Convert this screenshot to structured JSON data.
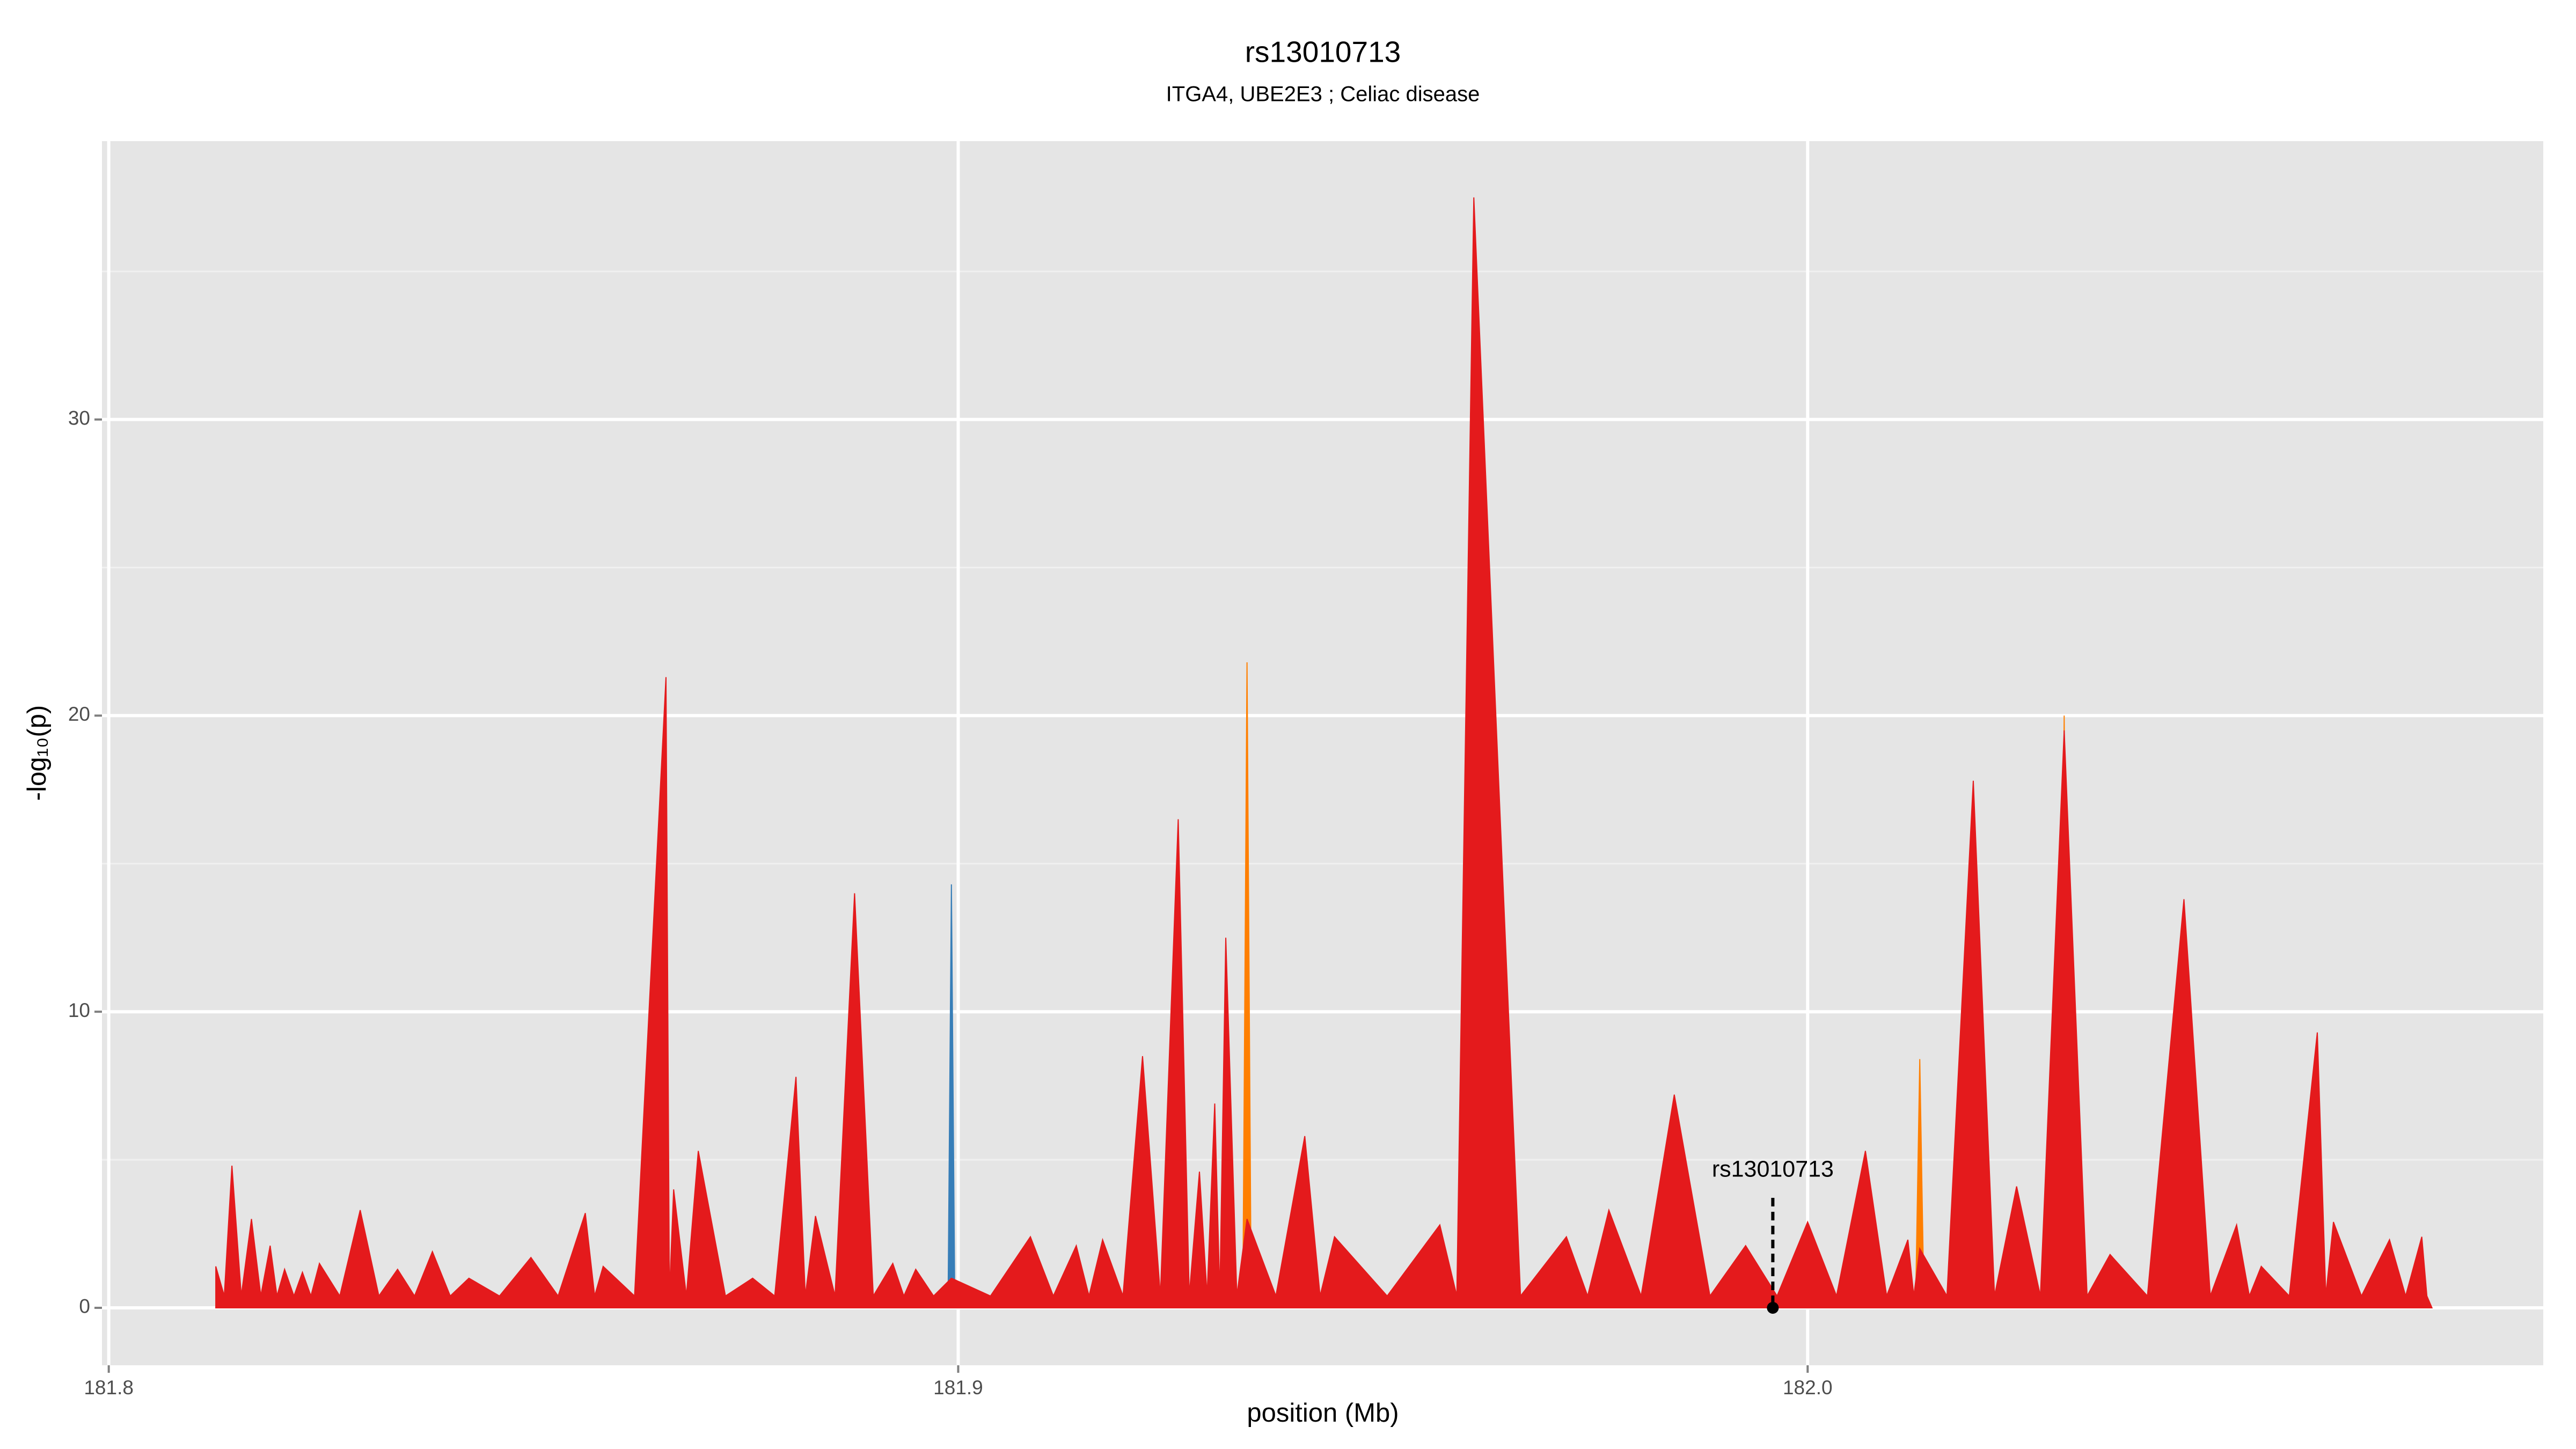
{
  "chart_data": {
    "type": "area",
    "title": "rs13010713",
    "subtitle": "ITGA4, UBE2E3 ; Celiac disease",
    "x_label": "position (Mb)",
    "y_label": "-log₁₀(p)",
    "xlim": [
      181.7992,
      182.0866
    ],
    "ylim": [
      -1.94,
      39.4
    ],
    "xticks": [
      181.8,
      181.9,
      {
        "value": 182,
        "label": "182.0"
      }
    ],
    "yticks": [
      0,
      10,
      20,
      30
    ],
    "grid": true,
    "annotations": [
      {
        "text": "rs13010713",
        "x": 181.9959
      }
    ],
    "series": [
      {
        "color": "#377eb8",
        "x": [
          181.8126,
          181.8805,
          181.8809,
          181.8813,
          181.8988,
          181.8992,
          181.8996,
          182.0064,
          182.0068,
          182.0072,
          182.0404,
          182.0408,
          182.0412,
          182.0735
        ],
        "values": [
          0,
          0,
          7.8,
          0,
          0,
          14.3,
          0,
          0,
          5.3,
          0,
          0,
          2.2,
          0,
          0
        ]
      },
      {
        "color": "#ff7f00",
        "x": [
          181.8126,
          181.9335,
          181.934,
          181.9345,
          182.0127,
          182.0132,
          182.0137,
          182.0297,
          182.0302,
          182.0307,
          182.0735
        ],
        "values": [
          0,
          0,
          21.8,
          0,
          0,
          8.4,
          0,
          0,
          20.0,
          0,
          0
        ]
      },
      {
        "color": "#e41a1c",
        "x": [
          181.8126,
          181.8136,
          181.8145,
          181.8156,
          181.8168,
          181.8179,
          181.819,
          181.8198,
          181.8207,
          181.8218,
          181.8228,
          181.8238,
          181.8248,
          181.8272,
          181.8296,
          181.8318,
          181.834,
          181.836,
          181.8381,
          181.8402,
          181.8424,
          181.846,
          181.8497,
          181.8529,
          181.8561,
          181.8572,
          181.8582,
          181.8619,
          181.8656,
          181.866,
          181.8665,
          181.868,
          181.8694,
          181.8726,
          181.8758,
          181.8784,
          181.8809,
          181.882,
          181.8832,
          181.8855,
          181.8878,
          181.89,
          181.8923,
          181.8936,
          181.895,
          181.8971,
          181.8992,
          181.9038,
          181.9085,
          181.9112,
          181.9139,
          181.9154,
          181.917,
          181.9194,
          181.9217,
          181.9238,
          181.9259,
          181.9272,
          181.9284,
          181.9293,
          181.9302,
          181.9308,
          181.9315,
          181.9328,
          181.934,
          181.9374,
          181.9408,
          181.9426,
          181.9443,
          181.9505,
          181.9567,
          181.9587,
          181.9607,
          181.9662,
          181.9716,
          181.9741,
          181.9766,
          181.9804,
          181.9843,
          181.9885,
          181.9927,
          181.9964,
          182.0,
          182.0034,
          182.0068,
          182.0093,
          182.0118,
          182.0125,
          182.0132,
          182.0164,
          182.0195,
          182.022,
          182.0246,
          182.0274,
          182.0302,
          182.0329,
          182.0356,
          182.04,
          182.0443,
          182.0474,
          182.0505,
          182.052,
          182.0534,
          182.0567,
          182.06,
          182.061,
          182.0619,
          182.0652,
          182.0685,
          182.0704,
          182.0723,
          182.0729,
          182.0735
        ],
        "values": [
          1.4,
          0.4,
          4.8,
          0.4,
          3.0,
          0.4,
          2.1,
          0.4,
          1.3,
          0.4,
          1.2,
          0.4,
          1.5,
          0.4,
          3.3,
          0.4,
          1.3,
          0.4,
          1.9,
          0.4,
          1.0,
          0.4,
          1.7,
          0.4,
          3.2,
          0.4,
          1.4,
          0.4,
          21.3,
          0.4,
          4.0,
          0.4,
          5.3,
          0.4,
          1.0,
          0.4,
          7.8,
          0.4,
          3.1,
          0.4,
          14.0,
          0.4,
          1.5,
          0.4,
          1.3,
          0.4,
          1.0,
          0.4,
          2.4,
          0.4,
          2.1,
          0.4,
          2.3,
          0.4,
          8.5,
          0.4,
          16.5,
          0.4,
          4.6,
          0.4,
          6.9,
          0.4,
          12.5,
          0.4,
          3.0,
          0.4,
          5.8,
          0.4,
          2.4,
          0.4,
          2.8,
          0.4,
          37.5,
          0.4,
          2.4,
          0.4,
          3.3,
          0.4,
          7.2,
          0.4,
          2.1,
          0.4,
          2.9,
          0.4,
          5.3,
          0.4,
          2.3,
          0.4,
          2.0,
          0.4,
          17.8,
          0.4,
          4.1,
          0.4,
          19.5,
          0.4,
          1.8,
          0.4,
          13.8,
          0.4,
          2.8,
          0.4,
          1.4,
          0.4,
          9.3,
          0.4,
          2.9,
          0.4,
          2.3,
          0.4,
          2.4,
          0.4,
          0
        ]
      }
    ]
  }
}
